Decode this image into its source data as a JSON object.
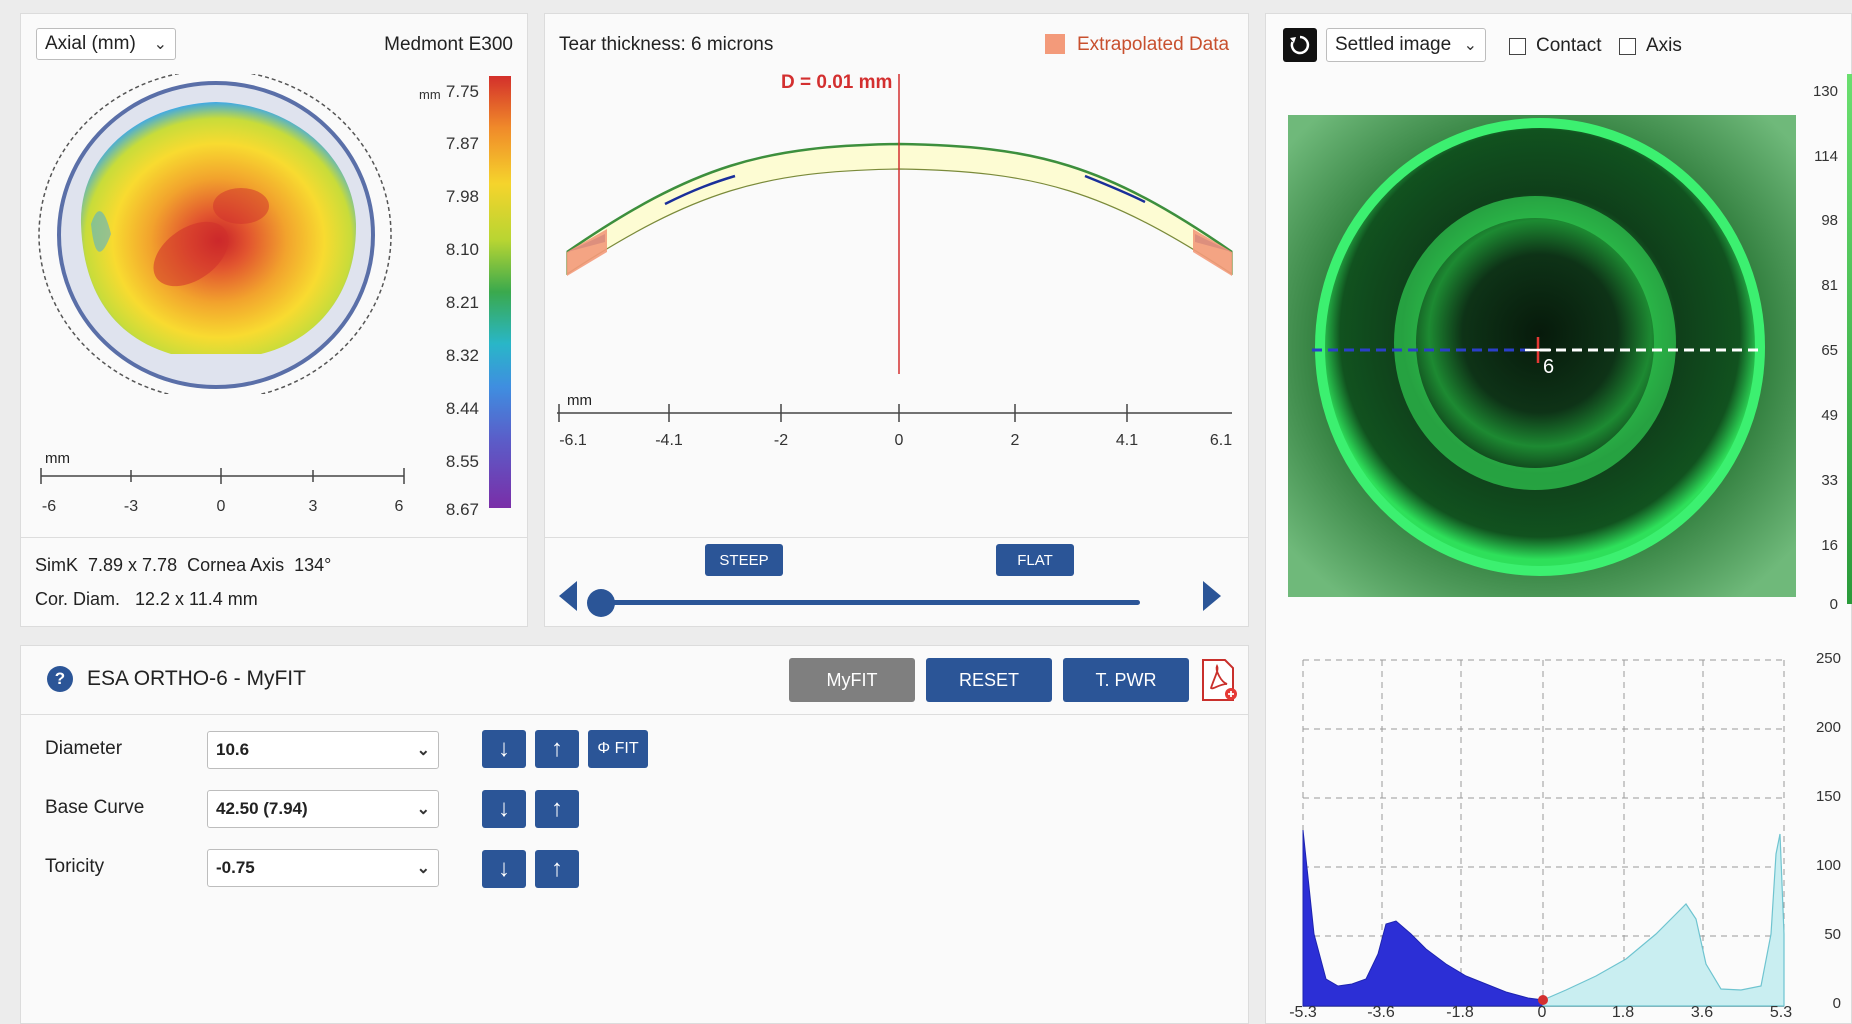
{
  "topo": {
    "map_type": "Axial (mm)",
    "device": "Medmont E300",
    "scale_unit": "mm",
    "scale_values": [
      "7.75",
      "7.87",
      "7.98",
      "8.10",
      "8.21",
      "8.32",
      "8.44",
      "8.55",
      "8.67"
    ],
    "axis_unit": "mm",
    "axis_ticks": [
      "-6",
      "-3",
      "0",
      "3",
      "6"
    ],
    "simk_line": "SimK  7.89 x 7.78  Cornea Axis  134°",
    "cor_diam_line": "Cor. Diam.   12.2 x 11.4 mm"
  },
  "profile": {
    "tear_thickness": "Tear thickness: 6 microns",
    "legend_label": "Extrapolated Data",
    "legend_color": "#f39a7a",
    "d_label": "D = 0.01 mm",
    "axis_unit": "mm",
    "axis_ticks": [
      "-6.1",
      "-4.1",
      "-2",
      "0",
      "2",
      "4.1",
      "6.1"
    ],
    "steep_label": "STEEP",
    "flat_label": "FLAT"
  },
  "eye": {
    "view_select": "Settled image",
    "contact_label": "Contact",
    "contact_checked": false,
    "axis_label": "Axis",
    "axis_checked": false,
    "intensity_ticks": [
      "130",
      "114",
      "98",
      "81",
      "65",
      "49",
      "33",
      "16",
      "0"
    ],
    "marker_label": "6"
  },
  "histogram": {
    "y_ticks": [
      "250",
      "200",
      "150",
      "100",
      "50",
      "0"
    ],
    "x_ticks": [
      "-5.3",
      "-3.6",
      "-1.8",
      "0",
      "1.8",
      "3.6",
      "5.3"
    ]
  },
  "fit": {
    "title": "ESA ORTHO-6 - MyFIT",
    "help_icon": "?",
    "myfit_label": "MyFIT",
    "reset_label": "RESET",
    "tpwr_label": "T. PWR",
    "diameter_label": "Diameter",
    "diameter_value": "10.6",
    "basecurve_label": "Base Curve",
    "basecurve_value": "42.50 (7.94)",
    "toricity_label": "Toricity",
    "toricity_value": "-0.75",
    "phi_fit_label": "Φ FIT",
    "down_glyph": "↓",
    "up_glyph": "↑"
  },
  "colors": {
    "accent": "#2b5597",
    "profile_line": "#d32f2f",
    "lens_fill": "#fdfcd3",
    "lens_edge": "#3d8f3d"
  }
}
